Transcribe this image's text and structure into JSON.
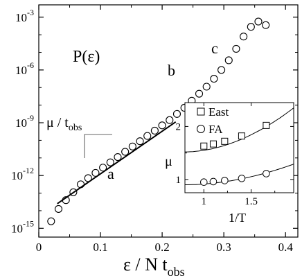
{
  "chart_data": [
    {
      "type": "scatter",
      "title": "P(ε)",
      "xlabel_main": "ε / N t",
      "xlabel_sub": "obs",
      "ylabel": "",
      "xlim": [
        0,
        0.42
      ],
      "ylim_log10": [
        -15.5,
        -2.3
      ],
      "yscale": "log",
      "xticks": [
        0,
        0.1,
        0.2,
        0.3,
        0.4
      ],
      "xtick_labels": [
        "0",
        "0.1",
        "0.2",
        "0.3",
        "0.4"
      ],
      "yticks_log10": [
        -3,
        -6,
        -9,
        -12,
        -15
      ],
      "ytick_base": "10",
      "ytick_exponents": [
        "-3",
        "-6",
        "-9",
        "-12",
        "-15"
      ],
      "grid": false,
      "series": [
        {
          "marker": "circle",
          "x": [
            0.02,
            0.032,
            0.044,
            0.056,
            0.068,
            0.08,
            0.092,
            0.104,
            0.116,
            0.128,
            0.14,
            0.152,
            0.164,
            0.176,
            0.188,
            0.2,
            0.212,
            0.224,
            0.236,
            0.248,
            0.26,
            0.272,
            0.284,
            0.296,
            0.308,
            0.32,
            0.332,
            0.344,
            0.356,
            0.368
          ],
          "log10_y": [
            -14.6,
            -13.9,
            -13.4,
            -12.95,
            -12.5,
            -12.15,
            -11.85,
            -11.55,
            -11.25,
            -10.95,
            -10.65,
            -10.35,
            -10.05,
            -9.75,
            -9.45,
            -9.15,
            -8.85,
            -8.5,
            -8.15,
            -7.75,
            -7.35,
            -6.95,
            -6.5,
            -6.0,
            -5.45,
            -4.8,
            -4.1,
            -3.55,
            -3.25,
            -3.45
          ]
        }
      ],
      "fit_line": {
        "x": [
          0.03,
          0.222
        ],
        "log10_y": [
          -13.6,
          -8.95
        ]
      },
      "annotations": [
        {
          "id": "mu",
          "text_main": "μ / t",
          "text_sub": "obs"
        },
        {
          "id": "a",
          "text": "a"
        },
        {
          "id": "b",
          "text": "b"
        },
        {
          "id": "c",
          "text": "c"
        }
      ]
    },
    {
      "type": "scatter",
      "xlabel": "1/T",
      "ylabel": "μ",
      "xlim": [
        0.8,
        1.95
      ],
      "ylim": [
        0.75,
        2.45
      ],
      "xticks": [
        1,
        1.5
      ],
      "xtick_labels": [
        "1",
        "1.5"
      ],
      "yticks": [
        1,
        2
      ],
      "ytick_labels": [
        "1",
        "2"
      ],
      "legend_position": "top-left",
      "series": [
        {
          "name": "East",
          "marker": "square",
          "x": [
            1.0,
            1.1,
            1.22,
            1.4,
            1.66
          ],
          "y": [
            1.63,
            1.67,
            1.72,
            1.82,
            2.02
          ],
          "fit_y": [
            1.52,
            2.35
          ]
        },
        {
          "name": "FA",
          "marker": "circle",
          "x": [
            1.0,
            1.1,
            1.22,
            1.4,
            1.66
          ],
          "y": [
            0.95,
            0.96,
            0.98,
            1.02,
            1.11
          ],
          "fit_y": [
            0.9,
            1.29
          ]
        }
      ]
    }
  ]
}
